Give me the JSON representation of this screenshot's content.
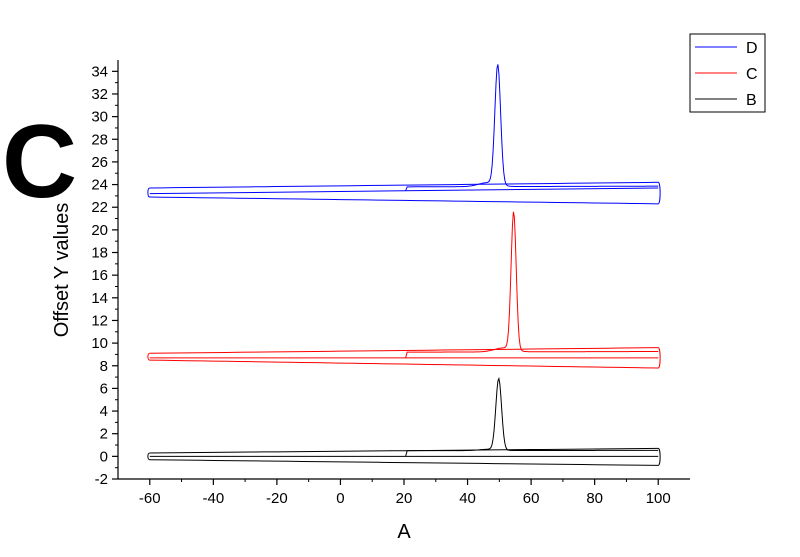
{
  "panel_letter": "C",
  "chart_data": {
    "type": "line",
    "title": "",
    "xlabel": "A",
    "ylabel": "Offset Y values",
    "xlim": [
      -70,
      110
    ],
    "ylim": [
      -2,
      35
    ],
    "xticks": [
      -60,
      -40,
      -20,
      0,
      20,
      40,
      60,
      80,
      100
    ],
    "yticks": [
      -2,
      0,
      2,
      4,
      6,
      8,
      10,
      12,
      14,
      16,
      18,
      20,
      22,
      24,
      26,
      28,
      30,
      32,
      34
    ],
    "grid": false,
    "legend_position": "top-right",
    "series": [
      {
        "name": "D",
        "color": "#0000ff",
        "offset": 23.2,
        "peak": {
          "center": 49.5,
          "height": 10.6,
          "width": 0.9
        },
        "loop": {
          "upper_left": 0.5,
          "upper_right": 1.0,
          "lower_left": -0.3,
          "lower_right": -0.9,
          "mid_left": 0.0,
          "mid_right": 0.5,
          "step_x": 20.5,
          "step_height": 0.6
        }
      },
      {
        "name": "C",
        "color": "#ff0000",
        "offset": 8.7,
        "peak": {
          "center": 54.5,
          "height": 12.2,
          "width": 0.8
        },
        "loop": {
          "upper_left": 0.4,
          "upper_right": 0.9,
          "lower_left": -0.2,
          "lower_right": -0.9,
          "mid_left": 0.0,
          "mid_right": 0.0,
          "step_x": 20.5,
          "step_height": 0.5
        }
      },
      {
        "name": "B",
        "color": "#000000",
        "offset": 0.0,
        "peak": {
          "center": 49.8,
          "height": 6.3,
          "width": 0.9
        },
        "loop": {
          "upper_left": 0.3,
          "upper_right": 0.7,
          "lower_left": -0.3,
          "lower_right": -0.8,
          "mid_left": 0.0,
          "mid_right": 0.0,
          "step_x": 20.5,
          "step_height": 0.5
        }
      }
    ]
  }
}
